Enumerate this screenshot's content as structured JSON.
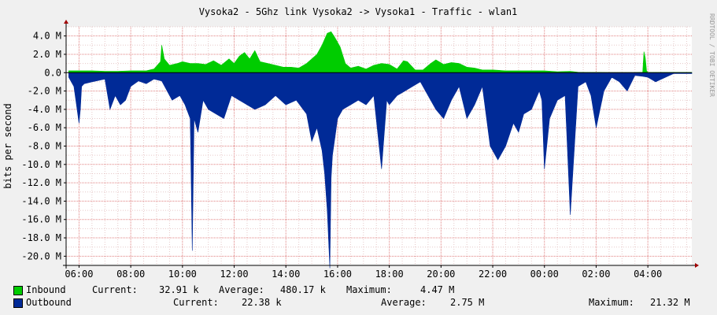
{
  "chart_data": {
    "type": "area",
    "title": "Vysoka2 - 5Ghz link Vysoka2 -> Vysoka1 - Traffic - wlan1",
    "ylabel": "bits per second",
    "watermark": "RRDTOOL / TOBI OETIKER",
    "ylim": [
      -21000000,
      5000000
    ],
    "y_ticks": [
      {
        "value": 4000000,
        "label": "4.0 M"
      },
      {
        "value": 2000000,
        "label": "2.0 M"
      },
      {
        "value": 0,
        "label": "0.0"
      },
      {
        "value": -2000000,
        "label": "-2.0 M"
      },
      {
        "value": -4000000,
        "label": "-4.0 M"
      },
      {
        "value": -6000000,
        "label": "-6.0 M"
      },
      {
        "value": -8000000,
        "label": "-8.0 M"
      },
      {
        "value": -10000000,
        "label": "-10.0 M"
      },
      {
        "value": -12000000,
        "label": "-12.0 M"
      },
      {
        "value": -14000000,
        "label": "-14.0 M"
      },
      {
        "value": -16000000,
        "label": "-16.0 M"
      },
      {
        "value": -18000000,
        "label": "-18.0 M"
      },
      {
        "value": -20000000,
        "label": "-20.0 M"
      }
    ],
    "x_range_hours": [
      5.5,
      29.7
    ],
    "x_ticks": [
      {
        "hour": 6,
        "label": "06:00"
      },
      {
        "hour": 8,
        "label": "08:00"
      },
      {
        "hour": 10,
        "label": "10:00"
      },
      {
        "hour": 12,
        "label": "12:00"
      },
      {
        "hour": 14,
        "label": "14:00"
      },
      {
        "hour": 16,
        "label": "16:00"
      },
      {
        "hour": 18,
        "label": "18:00"
      },
      {
        "hour": 20,
        "label": "20:00"
      },
      {
        "hour": 22,
        "label": "22:00"
      },
      {
        "hour": 24,
        "label": "00:00"
      },
      {
        "hour": 26,
        "label": "02:00"
      },
      {
        "hour": 28,
        "label": "04:00"
      }
    ],
    "grid": true,
    "legend_position": "bottom",
    "series": [
      {
        "name": "Inbound",
        "color": "#00cc00",
        "x_hours": [
          5.6,
          6.0,
          6.5,
          7.0,
          7.5,
          8.0,
          8.3,
          8.6,
          8.9,
          9.15,
          9.2,
          9.3,
          9.5,
          9.8,
          10.0,
          10.3,
          10.6,
          10.9,
          11.2,
          11.5,
          11.8,
          12.0,
          12.2,
          12.4,
          12.6,
          12.8,
          13.0,
          13.3,
          13.6,
          13.9,
          14.2,
          14.5,
          14.8,
          15.0,
          15.2,
          15.4,
          15.6,
          15.75,
          15.9,
          16.1,
          16.3,
          16.5,
          16.8,
          17.1,
          17.4,
          17.7,
          18.0,
          18.3,
          18.55,
          18.7,
          19.0,
          19.3,
          19.6,
          19.8,
          20.1,
          20.4,
          20.7,
          21.0,
          21.3,
          21.6,
          22.0,
          22.5,
          23.0,
          23.5,
          24.0,
          24.5,
          25.0,
          25.3,
          25.6,
          26.0,
          26.5,
          27.0,
          27.5,
          27.8,
          27.85,
          27.9,
          27.95,
          28.0,
          28.5,
          29.0,
          29.7
        ],
        "values": [
          200000,
          200000,
          200000,
          150000,
          150000,
          200000,
          200000,
          200000,
          400000,
          1200000,
          3000000,
          1500000,
          800000,
          1000000,
          1200000,
          1000000,
          1000000,
          900000,
          1300000,
          800000,
          1500000,
          1000000,
          1800000,
          2200000,
          1500000,
          2400000,
          1200000,
          1000000,
          800000,
          600000,
          600000,
          500000,
          1000000,
          1500000,
          2000000,
          3000000,
          4300000,
          4470000,
          3800000,
          2800000,
          1000000,
          500000,
          700000,
          400000,
          800000,
          1000000,
          900000,
          400000,
          1300000,
          1200000,
          300000,
          300000,
          1000000,
          1400000,
          900000,
          1100000,
          1000000,
          600000,
          500000,
          300000,
          300000,
          200000,
          200000,
          200000,
          200000,
          100000,
          150000,
          50000,
          30000,
          30000,
          20000,
          20000,
          20000,
          40000,
          2300000,
          1600000,
          200000,
          30000,
          30000,
          30000,
          30000
        ]
      },
      {
        "name": "Outbound",
        "color": "#002a97",
        "x_hours": [
          5.6,
          5.8,
          5.95,
          6.0,
          6.05,
          6.1,
          6.2,
          6.5,
          7.0,
          7.2,
          7.4,
          7.6,
          7.8,
          8.0,
          8.3,
          8.6,
          8.9,
          9.2,
          9.6,
          9.9,
          10.1,
          10.3,
          10.38,
          10.45,
          10.6,
          10.8,
          11.0,
          11.3,
          11.6,
          11.9,
          12.2,
          12.5,
          12.8,
          13.2,
          13.6,
          14.0,
          14.4,
          14.8,
          15.0,
          15.2,
          15.4,
          15.5,
          15.6,
          15.7,
          15.75,
          15.8,
          15.9,
          16.0,
          16.2,
          16.5,
          16.8,
          17.1,
          17.4,
          17.7,
          17.9,
          18.0,
          18.3,
          18.6,
          18.9,
          19.2,
          19.5,
          19.8,
          20.1,
          20.4,
          20.7,
          21.0,
          21.3,
          21.6,
          21.9,
          22.2,
          22.5,
          22.8,
          23.0,
          23.2,
          23.5,
          23.8,
          23.9,
          24.0,
          24.2,
          24.5,
          24.8,
          25.0,
          25.3,
          25.6,
          25.8,
          26.0,
          26.3,
          26.6,
          26.9,
          27.2,
          27.5,
          27.8,
          28.0,
          28.3,
          28.6,
          29.0,
          29.7
        ],
        "values": [
          -500000,
          -1500000,
          -4500000,
          -5500000,
          -4000000,
          -1500000,
          -1200000,
          -1000000,
          -700000,
          -4000000,
          -2500000,
          -3500000,
          -3000000,
          -1500000,
          -900000,
          -1200000,
          -700000,
          -900000,
          -3000000,
          -2500000,
          -3500000,
          -5000000,
          -19400000,
          -5000000,
          -6500000,
          -3000000,
          -4000000,
          -4500000,
          -5000000,
          -2500000,
          -3000000,
          -3500000,
          -4000000,
          -3500000,
          -2500000,
          -3500000,
          -3000000,
          -4500000,
          -7500000,
          -6000000,
          -8500000,
          -11000000,
          -15000000,
          -21300000,
          -11500000,
          -9000000,
          -7000000,
          -5000000,
          -4000000,
          -3500000,
          -3000000,
          -3500000,
          -2500000,
          -10500000,
          -3000000,
          -3500000,
          -2500000,
          -2000000,
          -1500000,
          -1000000,
          -2500000,
          -4000000,
          -5000000,
          -3000000,
          -1500000,
          -5000000,
          -3500000,
          -1500000,
          -8000000,
          -9500000,
          -8000000,
          -5500000,
          -6500000,
          -4500000,
          -4000000,
          -2000000,
          -3000000,
          -10500000,
          -5000000,
          -3000000,
          -2500000,
          -15500000,
          -1500000,
          -1000000,
          -2500000,
          -6000000,
          -2000000,
          -500000,
          -1000000,
          -2000000,
          -300000,
          -400000,
          -500000,
          -1000000,
          -600000,
          -100000,
          -100000
        ]
      }
    ]
  },
  "legend": {
    "inbound": {
      "label": "Inbound",
      "current_label": "Current:",
      "current_value": "32.91 k",
      "average_label": "Average:",
      "average_value": "480.17 k",
      "maximum_label": "Maximum:",
      "maximum_value": "4.47 M"
    },
    "outbound": {
      "label": "Outbound",
      "current_label": "Current:",
      "current_value": "22.38 k",
      "average_label": "Average:",
      "average_value": "2.75 M",
      "maximum_label": "Maximum:",
      "maximum_value": "21.32 M"
    }
  }
}
